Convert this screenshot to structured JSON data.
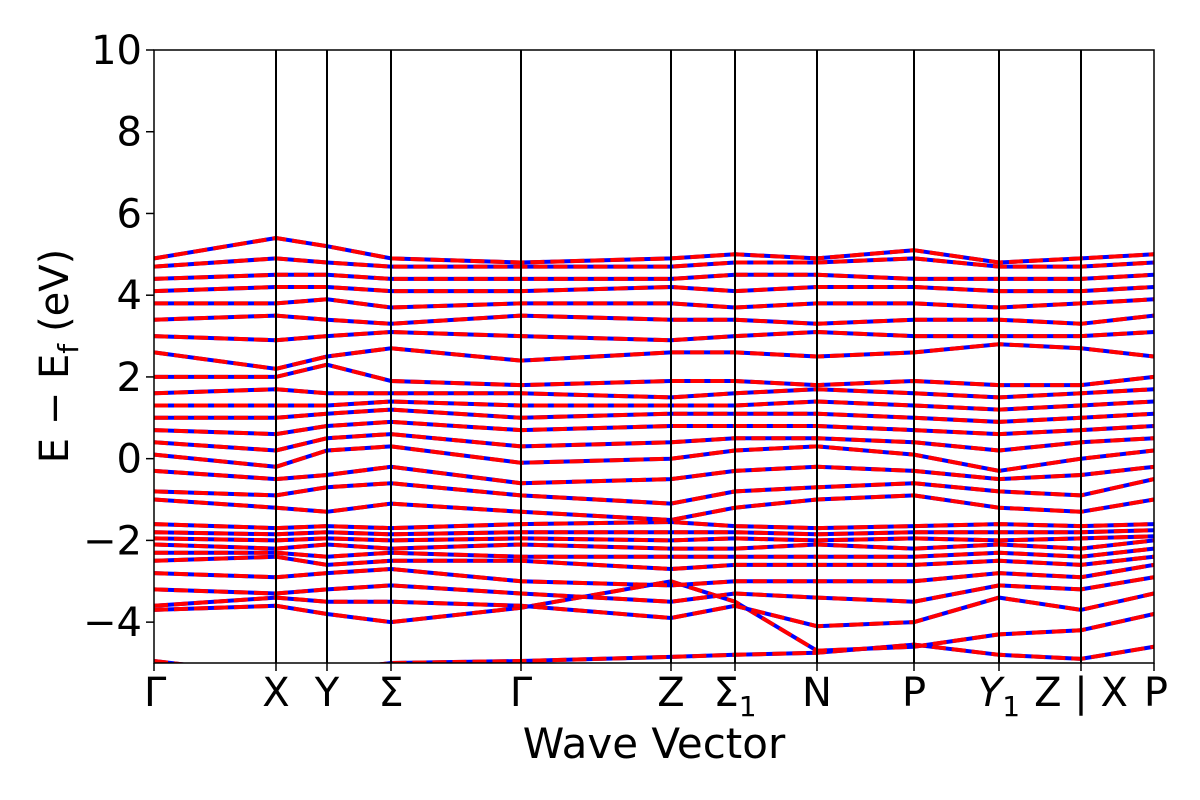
{
  "chart_data": {
    "type": "line",
    "title": "",
    "xlabel": "Wave Vector",
    "ylabel_parts": {
      "main": "E − E",
      "subscript": "f",
      "unit": "(eV)"
    },
    "ylim": [
      -5,
      10
    ],
    "yticks": [
      -4,
      -2,
      0,
      2,
      4,
      6,
      8,
      10
    ],
    "ytick_labels": [
      "−4",
      "−2",
      "0",
      "2",
      "4",
      "6",
      "8",
      "10"
    ],
    "xlim": [
      0,
      1
    ],
    "high_symmetry_points": [
      {
        "label": "Γ",
        "x": 0.0
      },
      {
        "label": "X",
        "x": 0.122
      },
      {
        "label": "Y",
        "x": 0.173
      },
      {
        "label": "Σ",
        "x": 0.237
      },
      {
        "label": "Γ",
        "x": 0.367
      },
      {
        "label": "Z",
        "x": 0.517
      },
      {
        "label": "Σ",
        "sub": "1",
        "x": 0.581
      },
      {
        "label": "N",
        "x": 0.663
      },
      {
        "label": "P",
        "x": 0.76
      },
      {
        "label": "Y",
        "sub": "1",
        "italic": true,
        "x": 0.845
      },
      {
        "label": "Z | X",
        "x": 0.927
      },
      {
        "label": "P",
        "x": 1.0
      }
    ],
    "bands": [
      {
        "x": [
          0,
          0.122,
          0.173,
          0.237,
          0.367,
          0.517,
          0.581,
          0.663,
          0.76,
          0.845,
          0.927,
          1.0
        ],
        "y": [
          -4.95,
          -5.3,
          -5.2,
          -5.0,
          -4.95,
          -4.85,
          -4.8,
          -4.75,
          -4.55,
          -4.8,
          -4.9,
          -4.6
        ]
      },
      {
        "x": [
          0,
          0.122,
          0.173,
          0.237,
          0.367,
          0.517,
          0.581,
          0.663,
          0.76,
          0.845,
          0.927,
          1.0
        ],
        "y": [
          -3.7,
          -3.6,
          -3.8,
          -4.0,
          -3.65,
          -3.0,
          -3.5,
          -4.7,
          -4.6,
          -4.3,
          -4.2,
          -3.8
        ]
      },
      {
        "x": [
          0,
          0.122,
          0.173,
          0.237,
          0.367,
          0.517,
          0.581,
          0.663,
          0.76,
          0.845,
          0.927,
          1.0
        ],
        "y": [
          -3.6,
          -3.4,
          -3.5,
          -3.5,
          -3.6,
          -3.9,
          -3.6,
          -4.1,
          -4.0,
          -3.4,
          -3.7,
          -3.3
        ]
      },
      {
        "x": [
          0,
          0.122,
          0.173,
          0.237,
          0.367,
          0.517,
          0.581,
          0.663,
          0.76,
          0.845,
          0.927,
          1.0
        ],
        "y": [
          -3.2,
          -3.3,
          -3.2,
          -3.1,
          -3.3,
          -3.5,
          -3.3,
          -3.4,
          -3.5,
          -3.1,
          -3.2,
          -2.9
        ]
      },
      {
        "x": [
          0,
          0.122,
          0.173,
          0.237,
          0.367,
          0.517,
          0.581,
          0.663,
          0.76,
          0.845,
          0.927,
          1.0
        ],
        "y": [
          -2.8,
          -2.9,
          -2.8,
          -2.7,
          -3.0,
          -3.1,
          -3.0,
          -3.0,
          -3.0,
          -2.8,
          -2.9,
          -2.6
        ]
      },
      {
        "x": [
          0,
          0.122,
          0.173,
          0.237,
          0.367,
          0.517,
          0.581,
          0.663,
          0.76,
          0.845,
          0.927,
          1.0
        ],
        "y": [
          -2.5,
          -2.4,
          -2.6,
          -2.5,
          -2.5,
          -2.7,
          -2.6,
          -2.6,
          -2.6,
          -2.5,
          -2.6,
          -2.4
        ]
      },
      {
        "x": [
          0,
          0.122,
          0.173,
          0.237,
          0.367,
          0.517,
          0.581,
          0.663,
          0.76,
          0.845,
          0.927,
          1.0
        ],
        "y": [
          -2.3,
          -2.3,
          -2.4,
          -2.3,
          -2.4,
          -2.4,
          -2.4,
          -2.4,
          -2.4,
          -2.3,
          -2.4,
          -2.2
        ]
      },
      {
        "x": [
          0,
          0.122,
          0.173,
          0.237,
          0.367,
          0.517,
          0.581,
          0.663,
          0.76,
          0.845,
          0.927,
          1.0
        ],
        "y": [
          -2.1,
          -2.2,
          -2.1,
          -2.2,
          -2.1,
          -2.2,
          -2.2,
          -2.1,
          -2.2,
          -2.1,
          -2.2,
          -2.0
        ]
      },
      {
        "x": [
          0,
          0.122,
          0.173,
          0.237,
          0.367,
          0.517,
          0.581,
          0.663,
          0.76,
          0.845,
          0.927,
          1.0
        ],
        "y": [
          -1.95,
          -2.0,
          -1.95,
          -2.0,
          -1.95,
          -2.0,
          -1.95,
          -2.0,
          -1.95,
          -2.0,
          -1.95,
          -1.9
        ]
      },
      {
        "x": [
          0,
          0.122,
          0.173,
          0.237,
          0.367,
          0.517,
          0.581,
          0.663,
          0.76,
          0.845,
          0.927,
          1.0
        ],
        "y": [
          -1.8,
          -1.85,
          -1.8,
          -1.85,
          -1.8,
          -1.8,
          -1.8,
          -1.85,
          -1.8,
          -1.8,
          -1.8,
          -1.75
        ]
      },
      {
        "x": [
          0,
          0.122,
          0.173,
          0.237,
          0.367,
          0.517,
          0.581,
          0.663,
          0.76,
          0.845,
          0.927,
          1.0
        ],
        "y": [
          -1.6,
          -1.7,
          -1.65,
          -1.7,
          -1.6,
          -1.55,
          -1.65,
          -1.7,
          -1.65,
          -1.6,
          -1.65,
          -1.6
        ]
      },
      {
        "x": [
          0,
          0.122,
          0.173,
          0.237,
          0.367,
          0.517,
          0.581,
          0.663,
          0.76,
          0.845,
          0.927,
          1.0
        ],
        "y": [
          -1.0,
          -1.2,
          -1.3,
          -1.1,
          -1.3,
          -1.5,
          -1.2,
          -1.0,
          -0.9,
          -1.2,
          -1.3,
          -1.0
        ]
      },
      {
        "x": [
          0,
          0.122,
          0.173,
          0.237,
          0.367,
          0.517,
          0.581,
          0.663,
          0.76,
          0.845,
          0.927,
          1.0
        ],
        "y": [
          -0.8,
          -0.9,
          -0.7,
          -0.6,
          -0.9,
          -1.1,
          -0.8,
          -0.7,
          -0.6,
          -0.8,
          -0.9,
          -0.5
        ]
      },
      {
        "x": [
          0,
          0.122,
          0.173,
          0.237,
          0.367,
          0.517,
          0.581,
          0.663,
          0.76,
          0.845,
          0.927,
          1.0
        ],
        "y": [
          -0.3,
          -0.5,
          -0.4,
          -0.2,
          -0.6,
          -0.5,
          -0.3,
          -0.2,
          -0.3,
          -0.5,
          -0.4,
          -0.2
        ]
      },
      {
        "x": [
          0,
          0.122,
          0.173,
          0.237,
          0.367,
          0.517,
          0.581,
          0.663,
          0.76,
          0.845,
          0.927,
          1.0
        ],
        "y": [
          0.1,
          -0.2,
          0.2,
          0.3,
          -0.1,
          0.0,
          0.2,
          0.3,
          0.1,
          -0.3,
          0.0,
          0.2
        ]
      },
      {
        "x": [
          0,
          0.122,
          0.173,
          0.237,
          0.367,
          0.517,
          0.581,
          0.663,
          0.76,
          0.845,
          0.927,
          1.0
        ],
        "y": [
          0.4,
          0.2,
          0.5,
          0.6,
          0.3,
          0.4,
          0.5,
          0.5,
          0.4,
          0.2,
          0.4,
          0.5
        ]
      },
      {
        "x": [
          0,
          0.122,
          0.173,
          0.237,
          0.367,
          0.517,
          0.581,
          0.663,
          0.76,
          0.845,
          0.927,
          1.0
        ],
        "y": [
          0.7,
          0.6,
          0.8,
          0.9,
          0.7,
          0.8,
          0.8,
          0.8,
          0.7,
          0.6,
          0.7,
          0.8
        ]
      },
      {
        "x": [
          0,
          0.122,
          0.173,
          0.237,
          0.367,
          0.517,
          0.581,
          0.663,
          0.76,
          0.845,
          0.927,
          1.0
        ],
        "y": [
          1.0,
          1.0,
          1.1,
          1.2,
          1.0,
          1.1,
          1.1,
          1.1,
          1.0,
          0.9,
          1.0,
          1.1
        ]
      },
      {
        "x": [
          0,
          0.122,
          0.173,
          0.237,
          0.367,
          0.517,
          0.581,
          0.663,
          0.76,
          0.845,
          0.927,
          1.0
        ],
        "y": [
          1.3,
          1.3,
          1.3,
          1.4,
          1.3,
          1.3,
          1.3,
          1.4,
          1.3,
          1.2,
          1.3,
          1.4
        ]
      },
      {
        "x": [
          0,
          0.122,
          0.173,
          0.237,
          0.367,
          0.517,
          0.581,
          0.663,
          0.76,
          0.845,
          0.927,
          1.0
        ],
        "y": [
          1.6,
          1.7,
          1.6,
          1.6,
          1.6,
          1.5,
          1.6,
          1.7,
          1.6,
          1.5,
          1.6,
          1.7
        ]
      },
      {
        "x": [
          0,
          0.122,
          0.173,
          0.237,
          0.367,
          0.517,
          0.581,
          0.663,
          0.76,
          0.845,
          0.927,
          1.0
        ],
        "y": [
          2.0,
          2.0,
          2.3,
          1.9,
          1.8,
          1.9,
          1.9,
          1.8,
          1.9,
          1.8,
          1.8,
          2.0
        ]
      },
      {
        "x": [
          0,
          0.122,
          0.173,
          0.237,
          0.367,
          0.517,
          0.581,
          0.663,
          0.76,
          0.845,
          0.927,
          1.0
        ],
        "y": [
          2.6,
          2.2,
          2.5,
          2.7,
          2.4,
          2.6,
          2.6,
          2.5,
          2.6,
          2.8,
          2.7,
          2.5
        ]
      },
      {
        "x": [
          0,
          0.122,
          0.173,
          0.237,
          0.367,
          0.517,
          0.581,
          0.663,
          0.76,
          0.845,
          0.927,
          1.0
        ],
        "y": [
          3.0,
          2.9,
          3.0,
          3.1,
          3.0,
          2.9,
          3.0,
          3.1,
          3.0,
          3.0,
          3.0,
          3.1
        ]
      },
      {
        "x": [
          0,
          0.122,
          0.173,
          0.237,
          0.367,
          0.517,
          0.581,
          0.663,
          0.76,
          0.845,
          0.927,
          1.0
        ],
        "y": [
          3.4,
          3.5,
          3.4,
          3.3,
          3.5,
          3.4,
          3.4,
          3.3,
          3.4,
          3.4,
          3.3,
          3.5
        ]
      },
      {
        "x": [
          0,
          0.122,
          0.173,
          0.237,
          0.367,
          0.517,
          0.581,
          0.663,
          0.76,
          0.845,
          0.927,
          1.0
        ],
        "y": [
          3.8,
          3.8,
          3.9,
          3.7,
          3.8,
          3.8,
          3.7,
          3.8,
          3.8,
          3.7,
          3.8,
          3.9
        ]
      },
      {
        "x": [
          0,
          0.122,
          0.173,
          0.237,
          0.367,
          0.517,
          0.581,
          0.663,
          0.76,
          0.845,
          0.927,
          1.0
        ],
        "y": [
          4.1,
          4.2,
          4.2,
          4.1,
          4.1,
          4.2,
          4.1,
          4.2,
          4.2,
          4.1,
          4.1,
          4.2
        ]
      },
      {
        "x": [
          0,
          0.122,
          0.173,
          0.237,
          0.367,
          0.517,
          0.581,
          0.663,
          0.76,
          0.845,
          0.927,
          1.0
        ],
        "y": [
          4.4,
          4.5,
          4.5,
          4.4,
          4.4,
          4.4,
          4.5,
          4.5,
          4.4,
          4.4,
          4.4,
          4.5
        ]
      },
      {
        "x": [
          0,
          0.122,
          0.173,
          0.237,
          0.367,
          0.517,
          0.581,
          0.663,
          0.76,
          0.845,
          0.927,
          1.0
        ],
        "y": [
          4.7,
          4.9,
          4.8,
          4.7,
          4.7,
          4.7,
          4.8,
          4.8,
          4.9,
          4.7,
          4.7,
          4.8
        ]
      },
      {
        "x": [
          0,
          0.122,
          0.173,
          0.237,
          0.367,
          0.517,
          0.581,
          0.663,
          0.76,
          0.845,
          0.927,
          1.0
        ],
        "y": [
          4.9,
          5.4,
          5.2,
          4.9,
          4.8,
          4.9,
          5.0,
          4.9,
          5.1,
          4.8,
          4.9,
          5.0
        ]
      }
    ],
    "colors": {
      "line_primary": "#ff0000",
      "line_secondary": "#0000ff",
      "axes": "#000000"
    }
  }
}
